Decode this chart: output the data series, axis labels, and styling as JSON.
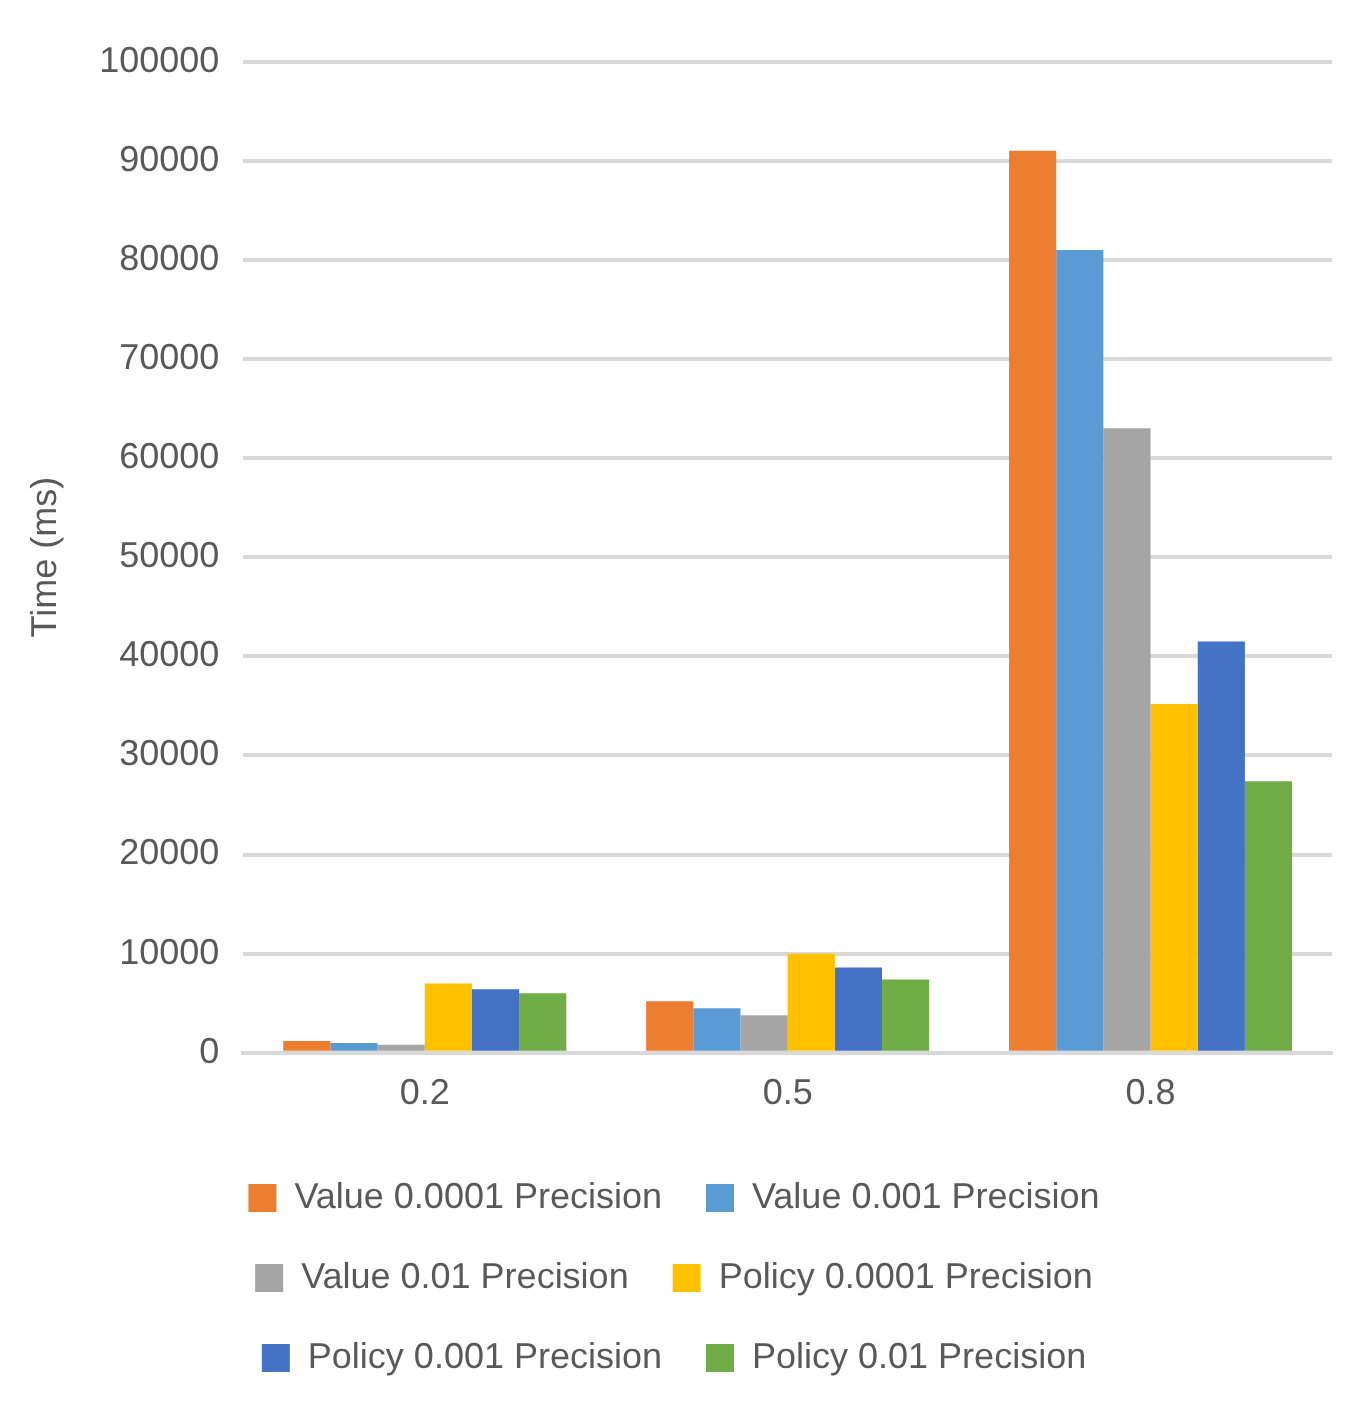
{
  "chart_data": {
    "type": "bar",
    "ylabel": "Time (ms)",
    "categories": [
      "0.2",
      "0.5",
      "0.8"
    ],
    "series": [
      {
        "name": "Value 0.0001 Precision",
        "color": "#ed7d31",
        "values": [
          1200,
          5200,
          91000
        ]
      },
      {
        "name": "Value 0.001 Precision",
        "color": "#5b9bd5",
        "values": [
          1000,
          4500,
          81000
        ]
      },
      {
        "name": "Value 0.01 Precision",
        "color": "#a5a5a5",
        "values": [
          800,
          3800,
          63000
        ]
      },
      {
        "name": "Policy 0.0001 Precision",
        "color": "#ffc000",
        "values": [
          7000,
          10000,
          35200
        ]
      },
      {
        "name": "Policy 0.001 Precision",
        "color": "#4472c4",
        "values": [
          6400,
          8600,
          41500
        ]
      },
      {
        "name": "Policy 0.01 Precision",
        "color": "#70ad47",
        "values": [
          6000,
          7400,
          27400
        ]
      }
    ],
    "ylim": [
      0,
      100000
    ],
    "yticks": [
      0,
      10000,
      20000,
      30000,
      40000,
      50000,
      60000,
      70000,
      80000,
      90000,
      100000
    ],
    "grid": "y",
    "legend": "bottom"
  }
}
